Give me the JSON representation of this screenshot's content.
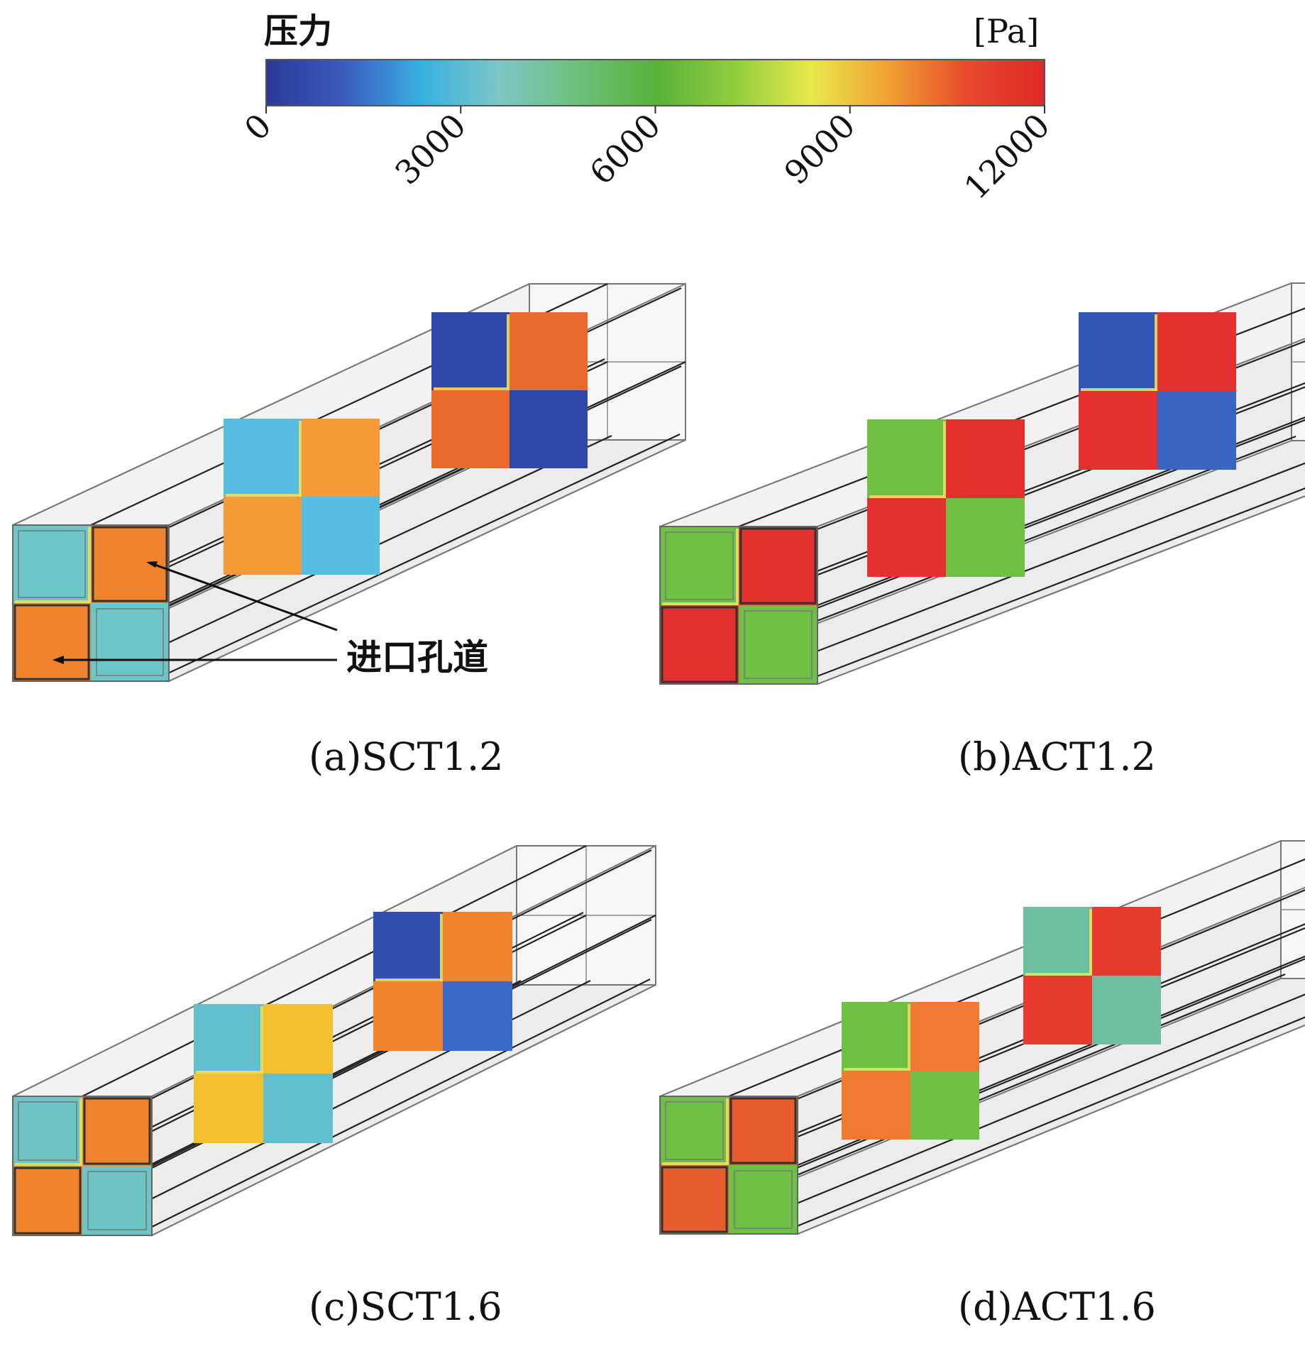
{
  "colorbar": {
    "title": "压力",
    "unit": "[Pa]",
    "ticks": [
      "0",
      "3000",
      "6000",
      "9000",
      "12000"
    ],
    "gradient": [
      "#2b3a96",
      "#3a5cc0",
      "#37b0e0",
      "#7cc6c6",
      "#6dbf7a",
      "#58b13a",
      "#8fcc3c",
      "#e8e84a",
      "#f0a030",
      "#e84a2c",
      "#e02828"
    ]
  },
  "annotation": {
    "label": "进口孔道"
  },
  "panels": [
    {
      "caption": "(a)SCT1.2",
      "faces": [
        [
          "#6cc6c8",
          "#f0842e",
          "#f0842e",
          "#6cc6c8"
        ],
        [
          "#55bde0",
          "#f59a36",
          "#f59a36",
          "#55bde0"
        ],
        [
          "#2f47a8",
          "#ea6a2e",
          "#ea6a2e",
          "#2f47a8"
        ]
      ]
    },
    {
      "caption": "(b)ACT1.2",
      "faces": [
        [
          "#6fbf44",
          "#e53030",
          "#e53030",
          "#6fbf44"
        ],
        [
          "#6fbf44",
          "#e53030",
          "#e53030",
          "#6fbf44"
        ],
        [
          "#3156b5",
          "#e53030",
          "#e53030",
          "#3a64c0"
        ]
      ]
    },
    {
      "caption": "(c)SCT1.6",
      "faces": [
        [
          "#6cc4c4",
          "#f0842e",
          "#f0842e",
          "#6cc4c4"
        ],
        [
          "#62c0cc",
          "#f5c030",
          "#f5c030",
          "#62c0cc"
        ],
        [
          "#3050b0",
          "#f0842e",
          "#f0842e",
          "#3a68c8"
        ]
      ]
    },
    {
      "caption": "(d)ACT1.6",
      "faces": [
        [
          "#6fbf44",
          "#e85b2c",
          "#e85b2c",
          "#6fbf44"
        ],
        [
          "#6fbf44",
          "#f07a30",
          "#f07a30",
          "#6fbf44"
        ],
        [
          "#6cc0a0",
          "#e63a2e",
          "#e63a2e",
          "#6cc0a0"
        ]
      ]
    }
  ]
}
